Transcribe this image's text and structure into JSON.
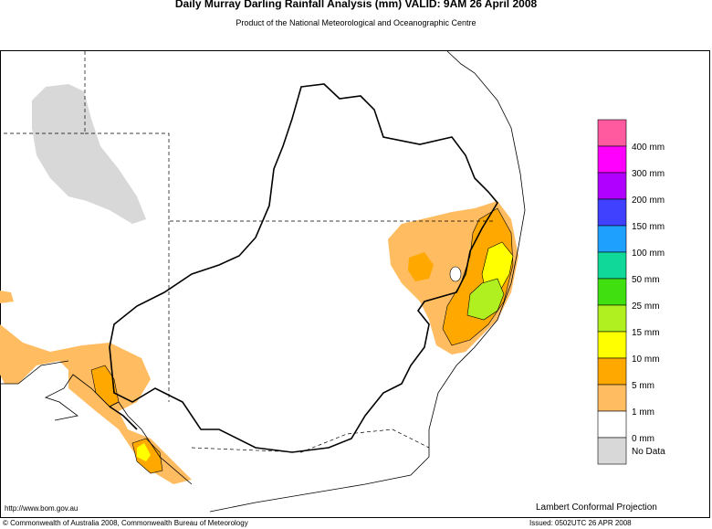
{
  "header": {
    "title": "Daily Murray Darling Rainfall Analysis (mm)   VALID: 9AM 26 April 2008",
    "subtitle": "Product of the National Meteorological and Oceanographic Centre"
  },
  "legend": {
    "items": [
      {
        "color": "#ff5aa0"
      },
      {
        "color": "#ff00ff",
        "label": "400 mm"
      },
      {
        "color": "#b000ff",
        "label": "300 mm"
      },
      {
        "color": "#4040ff",
        "label": "200 mm"
      },
      {
        "color": "#1ea0ff",
        "label": "150 mm"
      },
      {
        "color": "#10d898",
        "label": "100 mm"
      },
      {
        "color": "#40e010",
        "label": "50 mm"
      },
      {
        "color": "#b0f020",
        "label": "25 mm"
      },
      {
        "color": "#ffff00",
        "label": "15 mm"
      },
      {
        "color": "#ffa800",
        "label": "10 mm"
      },
      {
        "color": "#ffbc60",
        "label": "5 mm"
      },
      {
        "color": "#ffffff",
        "label": "1 mm"
      },
      {
        "color": "#d8d8d8",
        "label": "0 mm",
        "note": "No Data"
      }
    ]
  },
  "footer": {
    "url": "http://www.bom.gov.au",
    "projection": "Lambert Conformal Projection",
    "copyright": "© Commonwealth of Australia 2008, Commonwealth Bureau of Meteorology",
    "issued": "Issued: 0502UTC 26 APR 2008"
  }
}
